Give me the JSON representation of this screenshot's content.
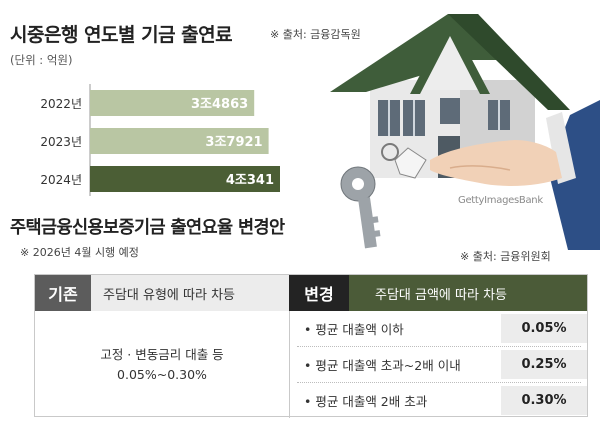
{
  "chart_data": {
    "type": "bar",
    "orientation": "horizontal",
    "title": "시중은행 연도별 기금 출연료",
    "source": "※ 출처: 금융감독원",
    "unit": "(단위 : 억원)",
    "categories": [
      "2022년",
      "2023년",
      "2024년"
    ],
    "values": [
      34863,
      37921,
      40341
    ],
    "value_labels": [
      "3조4863",
      "3조7921",
      "4조341"
    ],
    "colors": [
      "#b9c6a3",
      "#b9c6a3",
      "#4b5e35"
    ],
    "xlim": [
      0,
      40341
    ],
    "grid": false,
    "legend": "none"
  },
  "illustration": {
    "watermark": "GettyImagesBank"
  },
  "section": {
    "title": "주택금융신용보증기금 출연요율 변경안",
    "note": "※ 2026년 4월 시행 예정",
    "source": "※ 출처: 금융위원회"
  },
  "existing": {
    "tag": "기존",
    "header": "주담대 유형에 따라 차등",
    "line1": "고정 · 변동금리 대출 등",
    "line2": "0.05%~0.30%"
  },
  "change": {
    "tag": "변경",
    "header": "주담대 금액에 따라 차등",
    "rows": [
      {
        "label": "• 평균 대출액 이하",
        "value": "0.05%"
      },
      {
        "label": "• 평균 대출액 초과~2배 이내",
        "value": "0.25%"
      },
      {
        "label": "• 평균 대출액 2배 초과",
        "value": "0.30%"
      }
    ]
  },
  "colors": {
    "accent_dark_green": "#4b5e35",
    "accent_light_green": "#b9c6a3",
    "header_green": "#4b5b38"
  }
}
